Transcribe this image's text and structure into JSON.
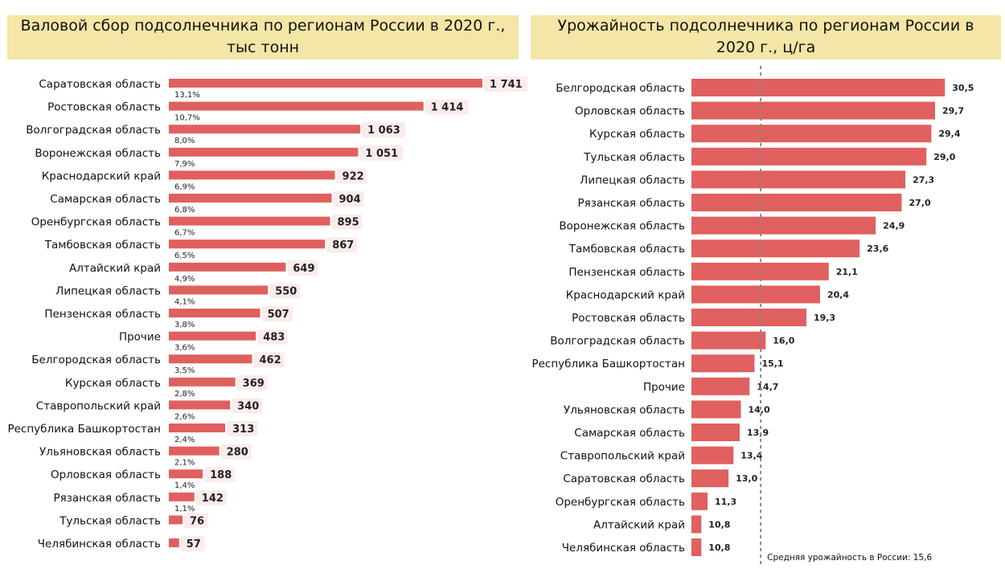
{
  "chart_data": [
    {
      "type": "bar",
      "orientation": "horizontal",
      "title": "Валовой сбор подсолнечника по регионам России в 2020 г., тыс тонн",
      "xlim": [
        0,
        1741
      ],
      "categories": [
        "Саратовская область",
        "Ростовская область",
        "Волгоградская область",
        "Воронежская область",
        "Краснодарский край",
        "Самарская область",
        "Оренбургская область",
        "Тамбовская область",
        "Алтайский край",
        "Липецкая область",
        "Пензенская область",
        "Прочие",
        "Белгородская область",
        "Курская область",
        "Ставропольский край",
        "Республика Башкортостан",
        "Ульяновская область",
        "Орловская область",
        "Рязанская область",
        "Тульская область",
        "Челябинская область"
      ],
      "values": [
        1741,
        1414,
        1063,
        1051,
        922,
        904,
        895,
        867,
        649,
        550,
        507,
        483,
        462,
        369,
        340,
        313,
        280,
        188,
        142,
        76,
        57
      ],
      "value_labels": [
        "1 741",
        "1 414",
        "1 063",
        "1 051",
        "922",
        "904",
        "895",
        "867",
        "649",
        "550",
        "507",
        "483",
        "462",
        "369",
        "340",
        "313",
        "280",
        "188",
        "142",
        "76",
        "57"
      ],
      "share_labels": [
        "13,1%",
        "10,7%",
        "8,0%",
        "7,9%",
        "6,9%",
        "6,8%",
        "6,7%",
        "6,5%",
        "4,9%",
        "4,1%",
        "3,8%",
        "3,6%",
        "3,5%",
        "2,8%",
        "2,6%",
        "2,4%",
        "2,1%",
        "1,4%",
        "1,1%",
        "",
        ""
      ],
      "bar_color": "#e0605f",
      "label_bg": "#fbeceb",
      "title_bg": "#f3e6a6"
    },
    {
      "type": "bar",
      "orientation": "horizontal",
      "title": "Урожайность подсолнечника по регионам России в 2020 г., ц/га",
      "xlim": [
        10,
        30.5
      ],
      "categories": [
        "Белгородская область",
        "Орловская область",
        "Курская область",
        "Тульская область",
        "Липецкая область",
        "Рязанская область",
        "Воронежская область",
        "Тамбовская область",
        "Пензенская область",
        "Краснодарский край",
        "Ростовская область",
        "Волгоградская область",
        "Республика Башкортостан",
        "Прочие",
        "Ульяновская область",
        "Самарская область",
        "Ставропольский край",
        "Саратовская область",
        "Оренбургская область",
        "Алтайский край",
        "Челябинская область"
      ],
      "values": [
        30.5,
        29.7,
        29.4,
        29.0,
        27.3,
        27.0,
        24.9,
        23.6,
        21.1,
        20.4,
        19.3,
        16.0,
        15.1,
        14.7,
        14.0,
        13.9,
        13.4,
        13.0,
        11.3,
        10.8,
        10.8
      ],
      "value_labels": [
        "30,5",
        "29,7",
        "29,4",
        "29,0",
        "27,3",
        "27,0",
        "24,9",
        "23,6",
        "21,1",
        "20,4",
        "19,3",
        "16,0",
        "15,1",
        "14,7",
        "14,0",
        "13,9",
        "13,4",
        "13,0",
        "11,3",
        "10,8",
        "10,8"
      ],
      "reference_line": {
        "value": 15.6,
        "label": "Средняя урожайность в России: 15,6",
        "style": "dashed",
        "color": "#888888"
      },
      "bar_color": "#e0605f",
      "title_bg": "#f3e6a6"
    }
  ]
}
